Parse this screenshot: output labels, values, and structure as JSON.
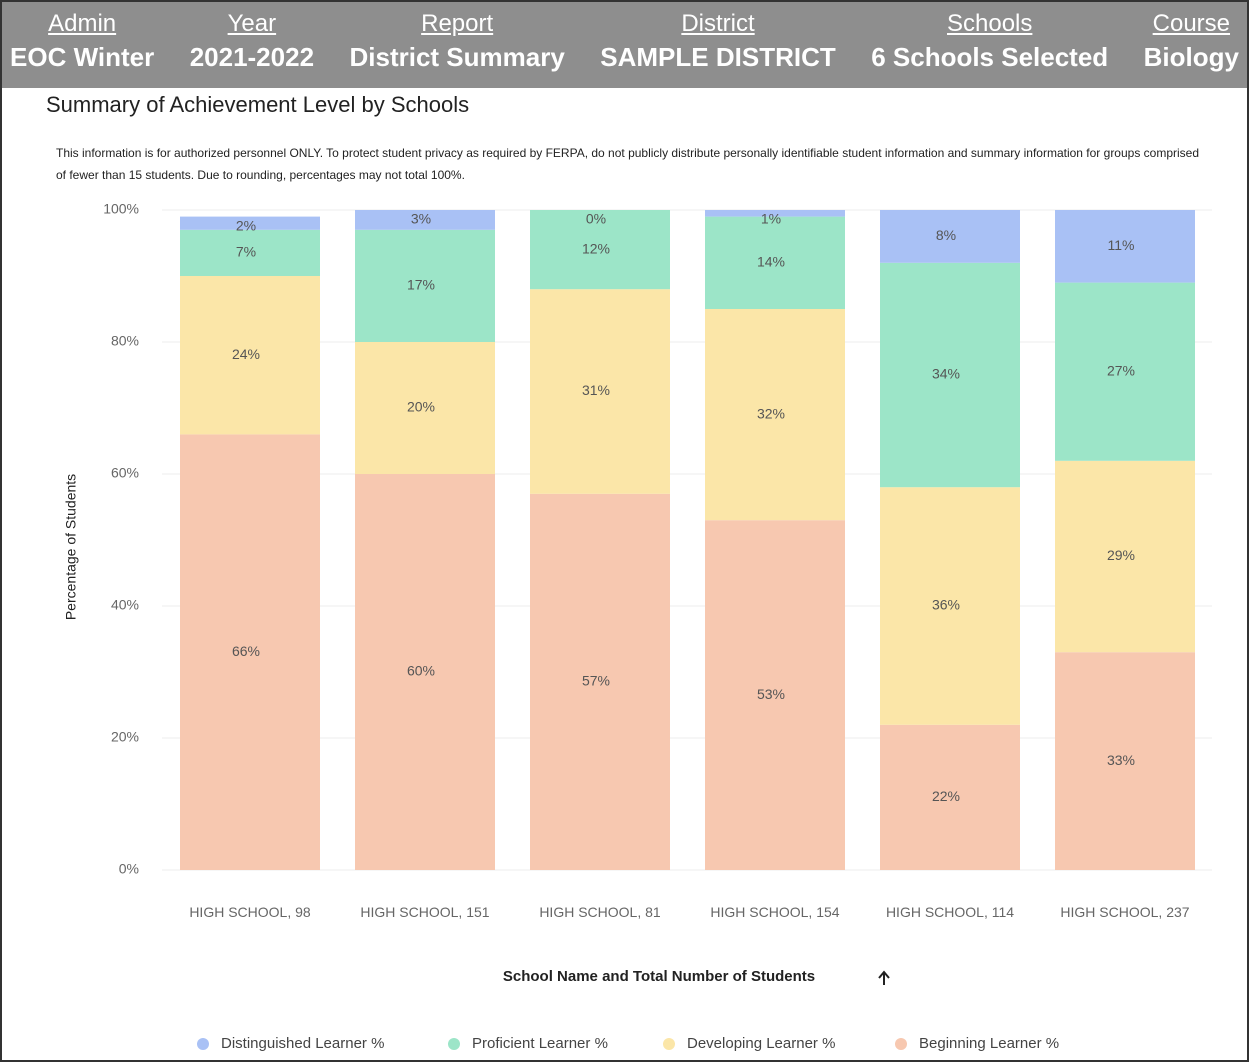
{
  "header": {
    "items": [
      {
        "label": "Admin",
        "value": "EOC Winter"
      },
      {
        "label": "Year",
        "value": "2021-2022"
      },
      {
        "label": "Report",
        "value": "District Summary"
      },
      {
        "label": "District",
        "value": "SAMPLE DISTRICT"
      },
      {
        "label": "Schools",
        "value": "6 Schools Selected"
      },
      {
        "label": "Course",
        "value": "Biology"
      }
    ]
  },
  "chart_data": {
    "type": "stacked_bar",
    "title": "Summary of Achievement Level by Schools",
    "subtitle": "This information is for authorized personnel ONLY. To protect student privacy as required by FERPA, do not publicly distribute personally identifiable student information and summary information for groups comprised of fewer than 15 students. Due to rounding, percentages may not total 100%.",
    "x_label": "School Name and Total Number of Students",
    "y_label": "Percentage of Students",
    "categories": [
      "HIGH SCHOOL, 98",
      "HIGH SCHOOL, 151",
      "HIGH SCHOOL, 81",
      "HIGH SCHOOL, 154",
      "HIGH SCHOOL, 114",
      "HIGH SCHOOL, 237"
    ],
    "series": [
      {
        "name": "Distinguished Learner %",
        "color": "#a9c1f5",
        "values": [
          2,
          3,
          0,
          1,
          8,
          11
        ],
        "value_labels": [
          "2%",
          "3%",
          "0%",
          "1%",
          "8%",
          "11%"
        ]
      },
      {
        "name": "Proficient Learner %",
        "color": "#9ce5c8",
        "values": [
          7,
          17,
          12,
          14,
          34,
          27
        ],
        "value_labels": [
          "7%",
          "17%",
          "12%",
          "14%",
          "34%",
          "27%"
        ]
      },
      {
        "name": "Developing Learner %",
        "color": "#fbe6a8",
        "values": [
          24,
          20,
          31,
          32,
          36,
          29
        ],
        "value_labels": [
          "24%",
          "20%",
          "31%",
          "32%",
          "36%",
          "29%"
        ]
      },
      {
        "name": "Beginning Learner %",
        "color": "#f7c8b0",
        "values": [
          66,
          60,
          57,
          53,
          22,
          33
        ],
        "value_labels": [
          "66%",
          "60%",
          "57%",
          "53%",
          "22%",
          "33%"
        ]
      }
    ],
    "ylim": [
      0,
      100
    ],
    "yticks": [
      {
        "value": 0,
        "label": "0%"
      },
      {
        "value": 20,
        "label": "20%"
      },
      {
        "value": 40,
        "label": "40%"
      },
      {
        "value": 60,
        "label": "60%"
      },
      {
        "value": 80,
        "label": "80%"
      },
      {
        "value": 100,
        "label": "100%"
      }
    ],
    "grid": true
  }
}
